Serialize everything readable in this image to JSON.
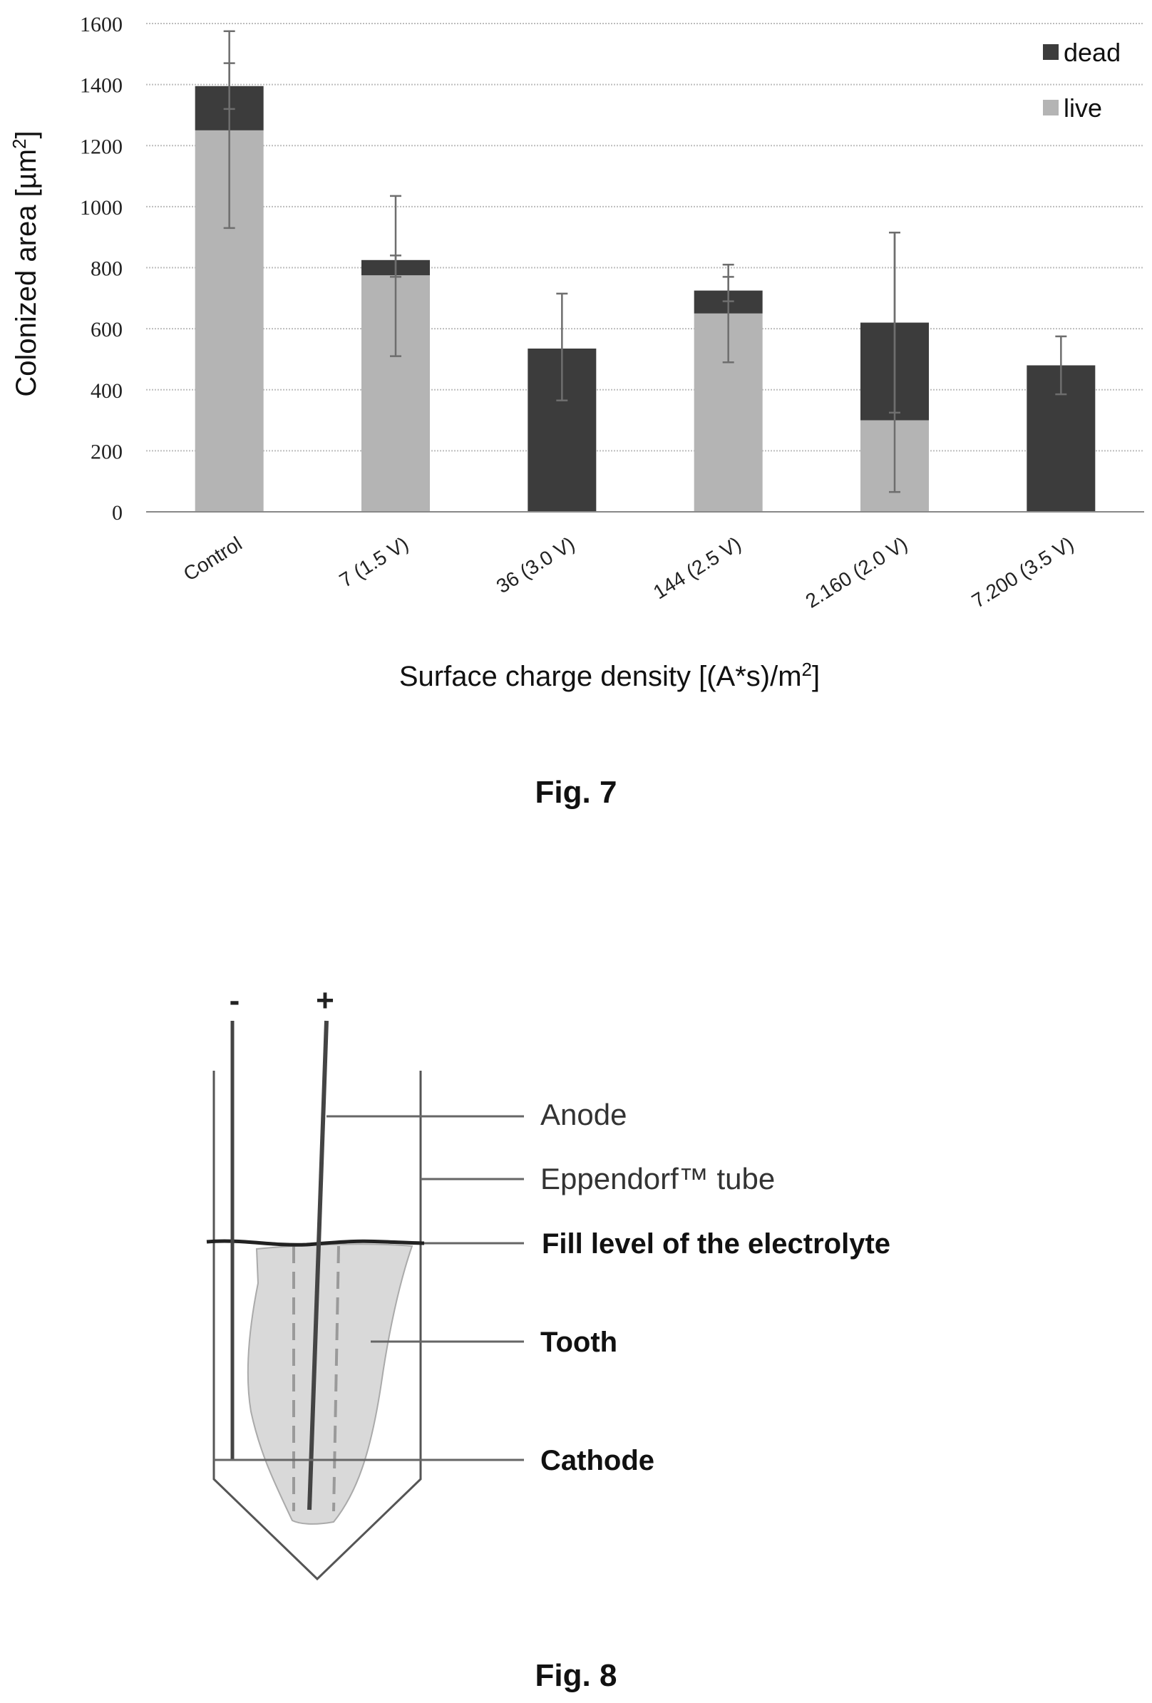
{
  "fig7": {
    "caption": "Fig. 7",
    "chart_data": {
      "type": "bar",
      "stacked": true,
      "categories": [
        "Control",
        "7 (1.5 V)",
        "36 (3.0 V)",
        "144 (2.5 V)",
        "2.160 (2.0 V)",
        "7.200 (3.5 V)"
      ],
      "series": [
        {
          "name": "live",
          "color": "#b4b4b4",
          "values": [
            1250,
            775,
            0,
            650,
            300,
            0
          ]
        },
        {
          "name": "dead",
          "color": "#3c3c3c",
          "values": [
            145,
            50,
            535,
            75,
            320,
            480
          ]
        }
      ],
      "error_bars": {
        "live": [
          [
            930,
            1470
          ],
          [
            510,
            1035
          ],
          null,
          [
            490,
            810
          ],
          [
            65,
            915
          ],
          null
        ],
        "dead": [
          [
            1320,
            1575
          ],
          [
            770,
            840
          ],
          [
            365,
            715
          ],
          [
            690,
            770
          ],
          [
            325,
            915
          ],
          [
            385,
            575
          ]
        ]
      },
      "xlabel": "Surface charge density [(A*s)/m2]",
      "ylabel": "Colonized area [µm2]",
      "ylim": [
        0,
        1600
      ],
      "yticks": [
        0,
        200,
        400,
        600,
        800,
        1000,
        1200,
        1400,
        1600
      ],
      "grid": true,
      "legend_position": "top-right"
    }
  },
  "fig8": {
    "caption": "Fig. 8",
    "polarity_minus": "-",
    "polarity_plus": "+",
    "labels": {
      "anode": "Anode",
      "tube": "Eppendorf™ tube",
      "fill": "Fill level of the electrolyte",
      "tooth": "Tooth",
      "cathode": "Cathode"
    }
  }
}
